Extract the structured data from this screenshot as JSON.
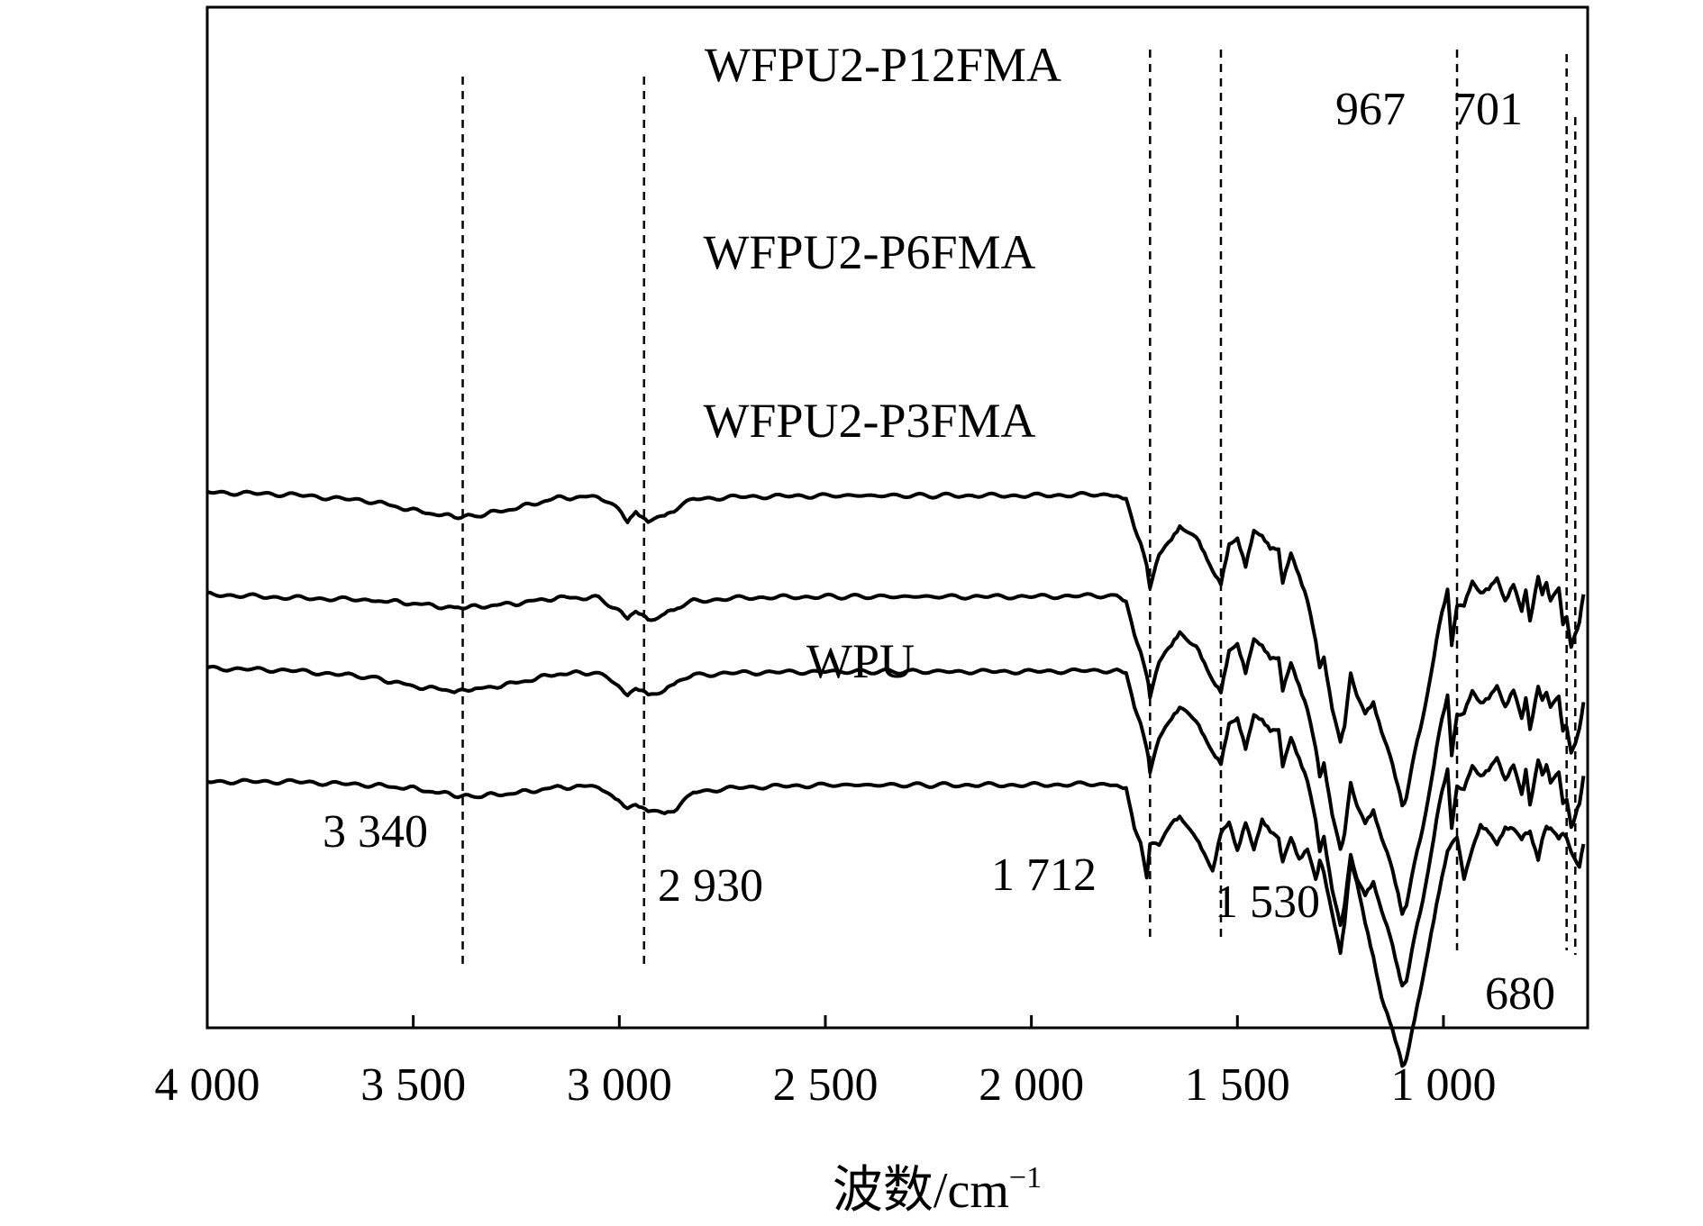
{
  "chart_data": {
    "type": "line",
    "title": "",
    "xlabel": "波数/cm",
    "xlabel_superscript": "−1",
    "ylabel": "",
    "xlim": [
      4000,
      650
    ],
    "x_reversed": true,
    "grid": false,
    "legend": "none",
    "y_ticks_shown": false,
    "x_ticks": [
      4000,
      3500,
      3000,
      2500,
      2000,
      1500,
      1000
    ],
    "x_tick_labels": [
      "4 000",
      "3 500",
      "3 000",
      "2 500",
      "2 000",
      "1 500",
      "1 000"
    ],
    "reference_lines": [
      {
        "x": 3380,
        "label": "3 340"
      },
      {
        "x": 2940,
        "label": "2 930"
      },
      {
        "x": 1712,
        "label": "1 712"
      },
      {
        "x": 1540,
        "label": "1 530"
      },
      {
        "x": 967,
        "label": "967"
      },
      {
        "x": 701,
        "label": "701"
      },
      {
        "x": 680,
        "label": "680"
      }
    ],
    "series": [
      {
        "name": "WFPU2-P12FMA",
        "offset": 3.6,
        "x": [
          4000,
          3800,
          3600,
          3500,
          3400,
          3350,
          3250,
          3150,
          3050,
          3010,
          2980,
          2960,
          2930,
          2890,
          2860,
          2820,
          2700,
          2500,
          2200,
          2000,
          1800,
          1770,
          1750,
          1735,
          1720,
          1712,
          1690,
          1660,
          1640,
          1600,
          1580,
          1560,
          1540,
          1520,
          1500,
          1480,
          1460,
          1440,
          1420,
          1400,
          1390,
          1370,
          1350,
          1330,
          1310,
          1300,
          1290,
          1270,
          1250,
          1240,
          1225,
          1210,
          1190,
          1170,
          1150,
          1130,
          1110,
          1100,
          1090,
          1070,
          1050,
          1030,
          1010,
          990,
          980,
          967,
          950,
          930,
          910,
          890,
          870,
          850,
          830,
          810,
          800,
          790,
          770,
          760,
          750,
          740,
          720,
          710,
          701,
          690,
          680,
          670,
          660
        ],
        "y": [
          0,
          -0.02,
          -0.08,
          -0.16,
          -0.22,
          -0.21,
          -0.14,
          -0.05,
          -0.04,
          -0.12,
          -0.25,
          -0.17,
          -0.25,
          -0.2,
          -0.14,
          -0.06,
          -0.04,
          -0.03,
          -0.03,
          -0.03,
          -0.02,
          -0.05,
          -0.3,
          -0.45,
          -0.65,
          -0.85,
          -0.55,
          -0.4,
          -0.3,
          -0.4,
          -0.55,
          -0.7,
          -0.8,
          -0.45,
          -0.4,
          -0.65,
          -0.35,
          -0.4,
          -0.5,
          -0.5,
          -0.8,
          -0.55,
          -0.75,
          -0.95,
          -1.3,
          -1.55,
          -1.45,
          -1.9,
          -2.2,
          -2.05,
          -1.6,
          -1.8,
          -1.95,
          -1.85,
          -2.1,
          -2.3,
          -2.6,
          -2.75,
          -2.7,
          -2.3,
          -2.0,
          -1.6,
          -1.15,
          -0.85,
          -1.35,
          -1.0,
          -1.0,
          -0.8,
          -0.9,
          -0.85,
          -0.75,
          -0.95,
          -0.8,
          -1.05,
          -0.85,
          -1.15,
          -0.75,
          -0.9,
          -0.8,
          -0.95,
          -0.85,
          -1.15,
          -1.1,
          -1.35,
          -1.25,
          -1.15,
          -0.9
        ]
      },
      {
        "name": "WFPU2-P6FMA",
        "offset": 2.7,
        "x": [
          4000,
          3800,
          3600,
          3500,
          3400,
          3350,
          3250,
          3150,
          3050,
          3010,
          2980,
          2960,
          2930,
          2890,
          2860,
          2820,
          2700,
          2500,
          2200,
          2000,
          1800,
          1770,
          1750,
          1735,
          1720,
          1712,
          1690,
          1660,
          1640,
          1600,
          1580,
          1560,
          1540,
          1520,
          1500,
          1480,
          1460,
          1440,
          1420,
          1400,
          1390,
          1370,
          1350,
          1330,
          1310,
          1300,
          1290,
          1270,
          1250,
          1240,
          1225,
          1210,
          1190,
          1170,
          1150,
          1130,
          1110,
          1100,
          1090,
          1070,
          1050,
          1030,
          1010,
          990,
          980,
          967,
          950,
          930,
          910,
          890,
          870,
          850,
          830,
          810,
          800,
          790,
          770,
          760,
          750,
          740,
          720,
          710,
          701,
          690,
          680,
          670,
          660
        ],
        "y": [
          0,
          -0.03,
          -0.05,
          -0.08,
          -0.12,
          -0.11,
          -0.08,
          -0.03,
          -0.03,
          -0.12,
          -0.22,
          -0.16,
          -0.22,
          -0.18,
          -0.12,
          -0.06,
          -0.03,
          -0.02,
          -0.02,
          -0.02,
          -0.01,
          -0.05,
          -0.35,
          -0.5,
          -0.7,
          -0.9,
          -0.6,
          -0.45,
          -0.35,
          -0.45,
          -0.6,
          -0.75,
          -0.85,
          -0.5,
          -0.45,
          -0.7,
          -0.4,
          -0.45,
          -0.55,
          -0.55,
          -0.85,
          -0.6,
          -0.8,
          -1.0,
          -1.35,
          -1.6,
          -1.5,
          -1.95,
          -2.25,
          -2.1,
          -1.65,
          -1.85,
          -2.0,
          -1.9,
          -2.15,
          -2.35,
          -2.65,
          -2.8,
          -2.75,
          -2.35,
          -2.05,
          -1.65,
          -1.2,
          -0.9,
          -1.4,
          -1.05,
          -1.05,
          -0.85,
          -0.95,
          -0.9,
          -0.8,
          -1.0,
          -0.85,
          -1.1,
          -0.9,
          -1.2,
          -0.8,
          -0.95,
          -0.85,
          -1.0,
          -0.9,
          -1.2,
          -1.15,
          -1.4,
          -1.3,
          -1.2,
          -0.95
        ]
      },
      {
        "name": "WFPU2-P3FMA",
        "offset": 2.05,
        "x": [
          4000,
          3800,
          3600,
          3500,
          3400,
          3350,
          3250,
          3150,
          3050,
          3010,
          2980,
          2960,
          2930,
          2890,
          2860,
          2820,
          2700,
          2500,
          2200,
          2000,
          1800,
          1770,
          1750,
          1735,
          1720,
          1712,
          1690,
          1660,
          1640,
          1600,
          1580,
          1560,
          1540,
          1520,
          1500,
          1480,
          1460,
          1440,
          1420,
          1400,
          1390,
          1370,
          1350,
          1330,
          1310,
          1300,
          1290,
          1270,
          1250,
          1240,
          1225,
          1210,
          1190,
          1170,
          1150,
          1130,
          1110,
          1100,
          1090,
          1070,
          1050,
          1030,
          1010,
          990,
          980,
          967,
          950,
          930,
          910,
          890,
          870,
          850,
          830,
          810,
          800,
          790,
          770,
          760,
          750,
          740,
          720,
          710,
          701,
          690,
          680,
          670,
          660
        ],
        "y": [
          0,
          -0.02,
          -0.08,
          -0.16,
          -0.2,
          -0.19,
          -0.13,
          -0.05,
          -0.04,
          -0.12,
          -0.24,
          -0.17,
          -0.24,
          -0.19,
          -0.13,
          -0.06,
          -0.04,
          -0.03,
          -0.03,
          -0.03,
          -0.02,
          -0.05,
          -0.35,
          -0.5,
          -0.7,
          -0.9,
          -0.6,
          -0.45,
          -0.35,
          -0.45,
          -0.6,
          -0.75,
          -0.85,
          -0.5,
          -0.45,
          -0.7,
          -0.4,
          -0.45,
          -0.55,
          -0.55,
          -0.85,
          -0.6,
          -0.8,
          -1.0,
          -1.35,
          -1.6,
          -1.5,
          -1.95,
          -2.25,
          -2.1,
          -1.65,
          -1.85,
          -2.0,
          -1.9,
          -2.15,
          -2.35,
          -2.65,
          -2.8,
          -2.75,
          -2.35,
          -2.05,
          -1.65,
          -1.2,
          -0.9,
          -1.4,
          -1.05,
          -1.05,
          -0.85,
          -0.95,
          -0.9,
          -0.8,
          -1.0,
          -0.85,
          -1.1,
          -0.9,
          -1.2,
          -0.8,
          -0.95,
          -0.85,
          -1.0,
          -0.9,
          -1.2,
          -1.15,
          -1.4,
          -1.3,
          -1.2,
          -0.95
        ]
      },
      {
        "name": "WPU",
        "offset": 1.05,
        "x": [
          4000,
          3800,
          3600,
          3500,
          3400,
          3350,
          3250,
          3150,
          3050,
          3010,
          2980,
          2960,
          2930,
          2890,
          2860,
          2820,
          2700,
          2500,
          2200,
          2000,
          1800,
          1770,
          1750,
          1735,
          1720,
          1712,
          1690,
          1660,
          1640,
          1600,
          1580,
          1560,
          1540,
          1520,
          1500,
          1480,
          1460,
          1440,
          1420,
          1400,
          1390,
          1370,
          1350,
          1330,
          1310,
          1300,
          1290,
          1270,
          1250,
          1240,
          1225,
          1210,
          1190,
          1170,
          1150,
          1130,
          1110,
          1100,
          1090,
          1070,
          1050,
          1030,
          1010,
          990,
          980,
          967,
          950,
          930,
          910,
          890,
          870,
          850,
          830,
          810,
          800,
          790,
          770,
          760,
          750,
          740,
          720,
          710,
          701,
          690,
          680,
          670,
          660
        ],
        "y": [
          0,
          0,
          -0.03,
          -0.06,
          -0.12,
          -0.13,
          -0.1,
          -0.05,
          -0.04,
          -0.15,
          -0.22,
          -0.19,
          -0.25,
          -0.27,
          -0.24,
          -0.09,
          -0.05,
          -0.03,
          -0.03,
          -0.03,
          -0.02,
          -0.06,
          -0.4,
          -0.55,
          -0.85,
          -0.55,
          -0.55,
          -0.35,
          -0.3,
          -0.5,
          -0.65,
          -0.8,
          -0.45,
          -0.35,
          -0.6,
          -0.35,
          -0.6,
          -0.35,
          -0.45,
          -0.5,
          -0.7,
          -0.5,
          -0.7,
          -0.6,
          -0.85,
          -0.7,
          -0.8,
          -1.15,
          -1.5,
          -1.25,
          -0.7,
          -0.9,
          -1.25,
          -1.55,
          -1.9,
          -2.1,
          -2.35,
          -2.5,
          -2.45,
          -2.1,
          -1.75,
          -1.35,
          -0.95,
          -0.6,
          -0.55,
          -0.5,
          -0.85,
          -0.6,
          -0.4,
          -0.45,
          -0.55,
          -0.4,
          -0.4,
          -0.5,
          -0.45,
          -0.45,
          -0.7,
          -0.5,
          -0.4,
          -0.4,
          -0.5,
          -0.45,
          -0.5,
          -0.6,
          -0.7,
          -0.75,
          -0.55
        ]
      }
    ]
  }
}
